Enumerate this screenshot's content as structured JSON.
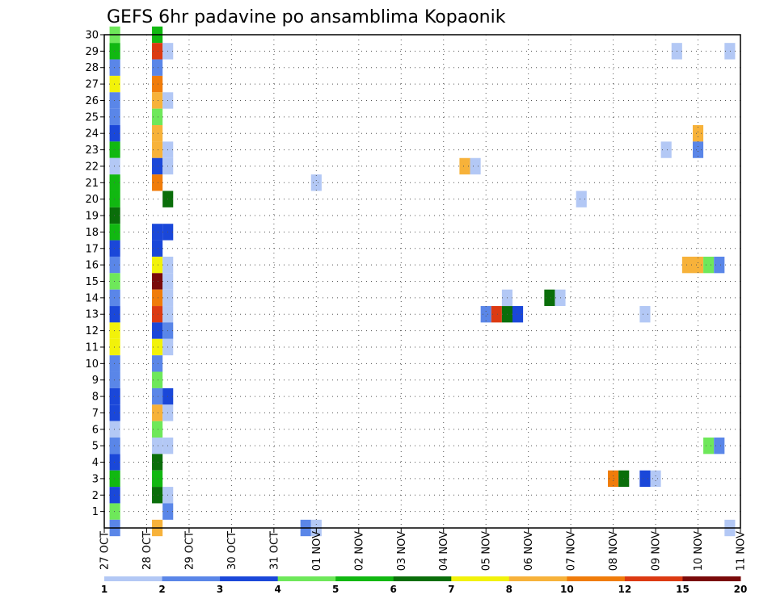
{
  "chart_data": {
    "type": "heatmap",
    "title": "GEFS 6hr padavine po ansamblima Kopaonik",
    "xlabel": "",
    "ylabel": "",
    "x_tick_labels": [
      "27 OCT",
      "28 OCT",
      "29 OCT",
      "30 OCT",
      "31 OCT",
      "01 NOV",
      "02 NOV",
      "03 NOV",
      "04 NOV",
      "05 NOV",
      "06 NOV",
      "07 NOV",
      "08 NOV",
      "09 NOV",
      "10 NOV",
      "11 NOV"
    ],
    "y_tick_labels": [
      "1",
      "2",
      "3",
      "4",
      "5",
      "6",
      "7",
      "8",
      "9",
      "10",
      "11",
      "12",
      "13",
      "14",
      "15",
      "16",
      "17",
      "18",
      "19",
      "20",
      "21",
      "22",
      "23",
      "24",
      "25",
      "26",
      "27",
      "28",
      "29",
      "30"
    ],
    "x_unit": "6-hour step from 27 OCT 00Z",
    "ylim": [
      0,
      30
    ],
    "grid": true,
    "colorbar": {
      "labels": [
        "1",
        "2",
        "3",
        "4",
        "5",
        "6",
        "7",
        "8",
        "10",
        "12",
        "15",
        "20"
      ],
      "colors": [
        "#b3c8f5",
        "#5a86e8",
        "#1a47d9",
        "#6ee85a",
        "#11b811",
        "#0a6e0a",
        "#f2f20a",
        "#f7b23a",
        "#f07c0a",
        "#dc3a12",
        "#7a0a0a"
      ]
    },
    "cells": [
      {
        "x": 1,
        "y": 30,
        "cat": 3
      },
      {
        "x": 1,
        "y": 29,
        "cat": 4
      },
      {
        "x": 1,
        "y": 28,
        "cat": 1
      },
      {
        "x": 1,
        "y": 27,
        "cat": 6
      },
      {
        "x": 1,
        "y": 26,
        "cat": 1
      },
      {
        "x": 1,
        "y": 25,
        "cat": 1
      },
      {
        "x": 1,
        "y": 24,
        "cat": 2
      },
      {
        "x": 1,
        "y": 23,
        "cat": 4
      },
      {
        "x": 1,
        "y": 22,
        "cat": 0
      },
      {
        "x": 1,
        "y": 21,
        "cat": 4
      },
      {
        "x": 1,
        "y": 20,
        "cat": 4
      },
      {
        "x": 1,
        "y": 19,
        "cat": 5
      },
      {
        "x": 1,
        "y": 18,
        "cat": 4
      },
      {
        "x": 1,
        "y": 17,
        "cat": 2
      },
      {
        "x": 1,
        "y": 16,
        "cat": 1
      },
      {
        "x": 1,
        "y": 15,
        "cat": 3
      },
      {
        "x": 1,
        "y": 14,
        "cat": 1
      },
      {
        "x": 1,
        "y": 13,
        "cat": 2
      },
      {
        "x": 1,
        "y": 12,
        "cat": 6
      },
      {
        "x": 1,
        "y": 11,
        "cat": 6
      },
      {
        "x": 1,
        "y": 10,
        "cat": 1
      },
      {
        "x": 1,
        "y": 9,
        "cat": 1
      },
      {
        "x": 1,
        "y": 8,
        "cat": 2
      },
      {
        "x": 1,
        "y": 7,
        "cat": 2
      },
      {
        "x": 1,
        "y": 6,
        "cat": 0
      },
      {
        "x": 1,
        "y": 5,
        "cat": 1
      },
      {
        "x": 1,
        "y": 4,
        "cat": 2
      },
      {
        "x": 1,
        "y": 3,
        "cat": 4
      },
      {
        "x": 1,
        "y": 2,
        "cat": 2
      },
      {
        "x": 1,
        "y": 1,
        "cat": 3
      },
      {
        "x": 1,
        "y": 0,
        "cat": 1
      },
      {
        "x": 5,
        "y": 30,
        "cat": 4
      },
      {
        "x": 5,
        "y": 29,
        "cat": 9
      },
      {
        "x": 5,
        "y": 28,
        "cat": 1
      },
      {
        "x": 5,
        "y": 27,
        "cat": 8
      },
      {
        "x": 5,
        "y": 26,
        "cat": 7
      },
      {
        "x": 5,
        "y": 25,
        "cat": 3
      },
      {
        "x": 5,
        "y": 24,
        "cat": 7
      },
      {
        "x": 5,
        "y": 23,
        "cat": 7
      },
      {
        "x": 5,
        "y": 22,
        "cat": 2
      },
      {
        "x": 5,
        "y": 21,
        "cat": 8
      },
      {
        "x": 5,
        "y": 18,
        "cat": 2
      },
      {
        "x": 5,
        "y": 17,
        "cat": 2
      },
      {
        "x": 5,
        "y": 16,
        "cat": 6
      },
      {
        "x": 5,
        "y": 15,
        "cat": 10
      },
      {
        "x": 5,
        "y": 14,
        "cat": 8
      },
      {
        "x": 5,
        "y": 13,
        "cat": 9
      },
      {
        "x": 5,
        "y": 12,
        "cat": 2
      },
      {
        "x": 5,
        "y": 11,
        "cat": 6
      },
      {
        "x": 5,
        "y": 10,
        "cat": 1
      },
      {
        "x": 5,
        "y": 9,
        "cat": 3
      },
      {
        "x": 5,
        "y": 8,
        "cat": 1
      },
      {
        "x": 5,
        "y": 7,
        "cat": 7
      },
      {
        "x": 5,
        "y": 6,
        "cat": 3
      },
      {
        "x": 5,
        "y": 5,
        "cat": 0
      },
      {
        "x": 5,
        "y": 4,
        "cat": 5
      },
      {
        "x": 5,
        "y": 3,
        "cat": 4
      },
      {
        "x": 5,
        "y": 2,
        "cat": 5
      },
      {
        "x": 5,
        "y": 0,
        "cat": 7
      },
      {
        "x": 6,
        "y": 29,
        "cat": 0
      },
      {
        "x": 6,
        "y": 26,
        "cat": 0
      },
      {
        "x": 6,
        "y": 23,
        "cat": 0
      },
      {
        "x": 6,
        "y": 22,
        "cat": 0
      },
      {
        "x": 6,
        "y": 20,
        "cat": 5
      },
      {
        "x": 6,
        "y": 18,
        "cat": 2
      },
      {
        "x": 6,
        "y": 16,
        "cat": 0
      },
      {
        "x": 6,
        "y": 15,
        "cat": 0
      },
      {
        "x": 6,
        "y": 14,
        "cat": 0
      },
      {
        "x": 6,
        "y": 13,
        "cat": 0
      },
      {
        "x": 6,
        "y": 12,
        "cat": 1
      },
      {
        "x": 6,
        "y": 11,
        "cat": 0
      },
      {
        "x": 6,
        "y": 8,
        "cat": 2
      },
      {
        "x": 6,
        "y": 7,
        "cat": 0
      },
      {
        "x": 6,
        "y": 5,
        "cat": 0
      },
      {
        "x": 6,
        "y": 2,
        "cat": 0
      },
      {
        "x": 6,
        "y": 1,
        "cat": 1
      },
      {
        "x": 19,
        "y": 0,
        "cat": 1
      },
      {
        "x": 20,
        "y": 0,
        "cat": 0
      },
      {
        "x": 20,
        "y": 21,
        "cat": 0
      },
      {
        "x": 34,
        "y": 22,
        "cat": 7
      },
      {
        "x": 35,
        "y": 22,
        "cat": 0
      },
      {
        "x": 36,
        "y": 13,
        "cat": 1
      },
      {
        "x": 37,
        "y": 13,
        "cat": 9
      },
      {
        "x": 38,
        "y": 13,
        "cat": 5
      },
      {
        "x": 39,
        "y": 13,
        "cat": 2
      },
      {
        "x": 38,
        "y": 14,
        "cat": 0
      },
      {
        "x": 42,
        "y": 14,
        "cat": 5
      },
      {
        "x": 43,
        "y": 14,
        "cat": 0
      },
      {
        "x": 45,
        "y": 20,
        "cat": 0
      },
      {
        "x": 48,
        "y": 3,
        "cat": 8
      },
      {
        "x": 49,
        "y": 3,
        "cat": 5
      },
      {
        "x": 51,
        "y": 3,
        "cat": 2
      },
      {
        "x": 52,
        "y": 3,
        "cat": 0
      },
      {
        "x": 51,
        "y": 13,
        "cat": 0
      },
      {
        "x": 53,
        "y": 23,
        "cat": 0
      },
      {
        "x": 54,
        "y": 29,
        "cat": 0
      },
      {
        "x": 55,
        "y": 16,
        "cat": 7
      },
      {
        "x": 56,
        "y": 16,
        "cat": 7
      },
      {
        "x": 57,
        "y": 16,
        "cat": 3
      },
      {
        "x": 58,
        "y": 16,
        "cat": 1
      },
      {
        "x": 56,
        "y": 24,
        "cat": 7
      },
      {
        "x": 56,
        "y": 23,
        "cat": 1
      },
      {
        "x": 57,
        "y": 5,
        "cat": 3
      },
      {
        "x": 58,
        "y": 5,
        "cat": 1
      },
      {
        "x": 59,
        "y": 29,
        "cat": 0
      },
      {
        "x": 59,
        "y": 0,
        "cat": 0
      }
    ]
  }
}
